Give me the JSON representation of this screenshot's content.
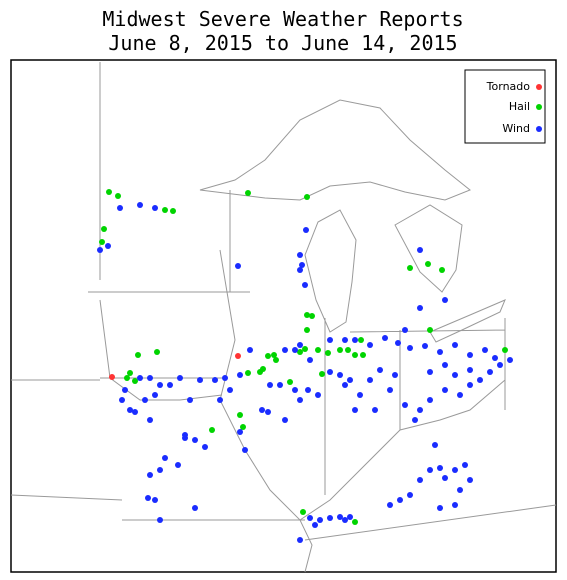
{
  "title": [
    "Midwest Severe Weather Reports",
    "June 8, 2015 to June 14, 2015"
  ],
  "legend": [
    {
      "label": "Tornado",
      "color": "#ff3333"
    },
    {
      "label": "Hail",
      "color": "#00d400"
    },
    {
      "label": "Wind",
      "color": "#1a2cff"
    }
  ]
}
